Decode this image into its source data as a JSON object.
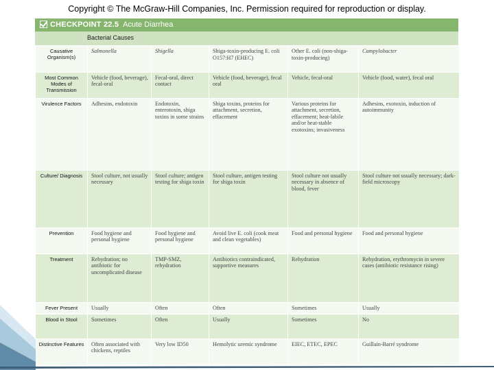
{
  "copyright": "Copyright © The McGraw-Hill Companies, Inc. Permission required for reproduction or display.",
  "header": {
    "checkpoint_label": "CHECKPOINT 22.5",
    "title": "Acute Diarrhea"
  },
  "subheader": "Bacterial Causes",
  "rows": [
    {
      "label": "Causative Organism(s)",
      "cells": [
        "Salmonella",
        "Shigella",
        "Shiga-toxin-producing E. coli O157:H7 (EHEC)",
        "Other E. coli (non-shiga-toxin-producing)",
        "Campylobacter"
      ]
    },
    {
      "label": "Most Common Modes of Transmission",
      "cells": [
        "Vehicle (food, beverage), fecal-oral",
        "Fecal-oral, direct contact",
        "Vehicle (food, beverage), fecal oral",
        "Vehicle, fecal-oral",
        "Vehicle (food, water), fecal oral"
      ]
    },
    {
      "label": "Virulence Factors",
      "cells": [
        "Adhesins, endotoxin",
        "Endotoxin, enterotoxin, shiga toxins in some strains",
        "Shiga toxins, proteins for attachment, secretion, effacement",
        "Various proteins for attachment, secretion, effacement; heat-labile and/or heat-stable exotoxins; invasiveness",
        "Adhesins, exotoxin, induction of autoimmunity"
      ]
    },
    {
      "label": "Culture/ Diagnosis",
      "cells": [
        "Stool culture, not usually necessary",
        "Stool culture; antigen testing for shiga toxin",
        "Stool culture, antigen testing for shiga toxin",
        "Stool culture not usually necessary in absence of blood, fever",
        "Stool culture not usually necessary; dark-field microscopy"
      ]
    },
    {
      "label": "Prevention",
      "cells": [
        "Food hygiene and personal hygiene",
        "Food hygiene and personal hygiene",
        "Avoid live E. coli (cook meat and clean vegetables)",
        "Food and personal hygiene",
        "Food and personal hygiene"
      ]
    },
    {
      "label": "Treatment",
      "cells": [
        "Rehydration; no antibiotic for uncomplicated disease",
        "TMP-SMZ, rehydration",
        "Antibiotics contraindicated, supportive measures",
        "Rehydration",
        "Rehydration, erythromycin in severe cases (antibiotic resistance rising)"
      ]
    },
    {
      "label": "Fever Present",
      "cells": [
        "Usually",
        "Often",
        "Often",
        "Sometimes",
        "Usually"
      ]
    },
    {
      "label": "Blood in Stool",
      "cells": [
        "Sometimes",
        "Often",
        "Usually",
        "Sometimes",
        "No"
      ]
    },
    {
      "label": "Distinctive Features",
      "cells": [
        "Often associated with chickens, reptiles",
        "Very low ID50",
        "Hemolytic uremic syndrome",
        "EIEC, ETEC, EPEC",
        "Guillain-Barré syndrome"
      ]
    }
  ],
  "colors": {
    "header_bg": "#86b66e",
    "subheader_bg": "#cfe3c2",
    "row_light": "#f4f9f1",
    "row_shaded": "#deecd4"
  }
}
